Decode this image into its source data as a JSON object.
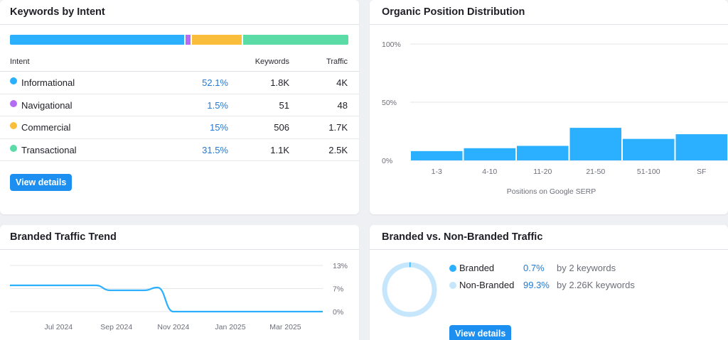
{
  "intent": {
    "title": "Keywords by Intent",
    "columns": {
      "intent": "Intent",
      "keywords": "Keywords",
      "traffic": "Traffic"
    },
    "rows": [
      {
        "name": "Informational",
        "pct": "52.1%",
        "keywords": "1.8K",
        "traffic": "4K",
        "color": "#2bb0ff",
        "share": 52.1
      },
      {
        "name": "Navigational",
        "pct": "1.5%",
        "keywords": "51",
        "traffic": "48",
        "color": "#b46cf5",
        "share": 1.5
      },
      {
        "name": "Commercial",
        "pct": "15%",
        "keywords": "506",
        "traffic": "1.7K",
        "color": "#fbbe3c",
        "share": 15
      },
      {
        "name": "Transactional",
        "pct": "31.5%",
        "keywords": "1.1K",
        "traffic": "2.5K",
        "color": "#5bdba6",
        "share": 31.5
      }
    ],
    "view_details": "View details"
  },
  "position": {
    "title": "Organic Position Distribution",
    "chart_data": {
      "type": "bar",
      "categories": [
        "1-3",
        "4-10",
        "11-20",
        "21-50",
        "51-100",
        "SF"
      ],
      "values": [
        8,
        10.5,
        12.5,
        28,
        18.5,
        22.5
      ],
      "ylim": [
        0,
        100
      ],
      "yticks": [
        "100%",
        "50%",
        "0%"
      ],
      "xlabel": "Positions on Google SERP",
      "color": "#2bb0ff"
    }
  },
  "trend": {
    "title": "Branded Traffic Trend",
    "chart_data": {
      "type": "line",
      "x": [
        "2024-05-10",
        "2024-06-15",
        "2024-07-10",
        "2024-08-10",
        "2024-08-25",
        "2024-09-15",
        "2024-10-01",
        "2024-10-15",
        "2024-11-01",
        "2024-12-01",
        "2025-01-15",
        "2025-02-15",
        "2025-04-10"
      ],
      "y": [
        7.4,
        7.4,
        7.4,
        7.4,
        6.0,
        6.0,
        6.0,
        6.8,
        0,
        0,
        0,
        0,
        0
      ],
      "ylim": [
        0,
        13
      ],
      "yticks": [
        "13%",
        "7%",
        "0%"
      ],
      "xticks": [
        "Jul 2024",
        "Sep 2024",
        "Nov 2024",
        "Jan 2025",
        "Mar 2025"
      ],
      "color": "#2bb0ff"
    }
  },
  "branded": {
    "title": "Branded vs. Non-Branded Traffic",
    "chart_data": {
      "type": "pie",
      "labels": [
        "Branded",
        "Non-Branded"
      ],
      "values": [
        0.7,
        99.3
      ],
      "colors": [
        "#2bb0ff",
        "#c6e6fc"
      ]
    },
    "rows": [
      {
        "label": "Branded",
        "pct": "0.7%",
        "keywords": "by 2 keywords",
        "color": "#2bb0ff"
      },
      {
        "label": "Non-Branded",
        "pct": "99.3%",
        "keywords": "by 2.26K keywords",
        "color": "#c6e6fc"
      }
    ],
    "view_details": "View details"
  }
}
